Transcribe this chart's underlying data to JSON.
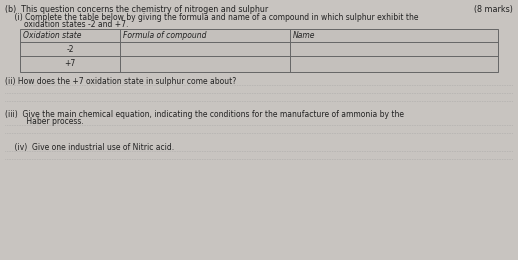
{
  "bg_color": "#c8c4c0",
  "text_color": "#222222",
  "header_text": "(b)  This question concerns the chemistry of nitrogen and sulphur",
  "marks_text": "(8 marks)",
  "sub_i_line1": "    (i) Complete the table below by giving the formula and name of a compound in which sulphur exhibit the",
  "sub_i_line2": "        oxidation states -2 and +7.",
  "table_headers": [
    "Oxidation state",
    "Formula of compound",
    "Name"
  ],
  "table_rows": [
    "-2",
    "+7"
  ],
  "sub_ii_text": "(ii) How does the +7 oxidation state in sulphur come about?",
  "dotted_lines_ii": 3,
  "sub_iii_line1": "(iii)  Give the main chemical equation, indicating the conditions for the manufacture of ammonia by the",
  "sub_iii_line2": "         Haber process.",
  "dotted_lines_iii": 2,
  "sub_iv_text": "    (iv)  Give one industrial use of Nitric acid.",
  "dotted_lines_iv": 2,
  "font_size_main": 5.8,
  "font_size_small": 5.5,
  "dot_color": "#999999",
  "table_line_color": "#666666",
  "table_bg": "#c4c0bc"
}
